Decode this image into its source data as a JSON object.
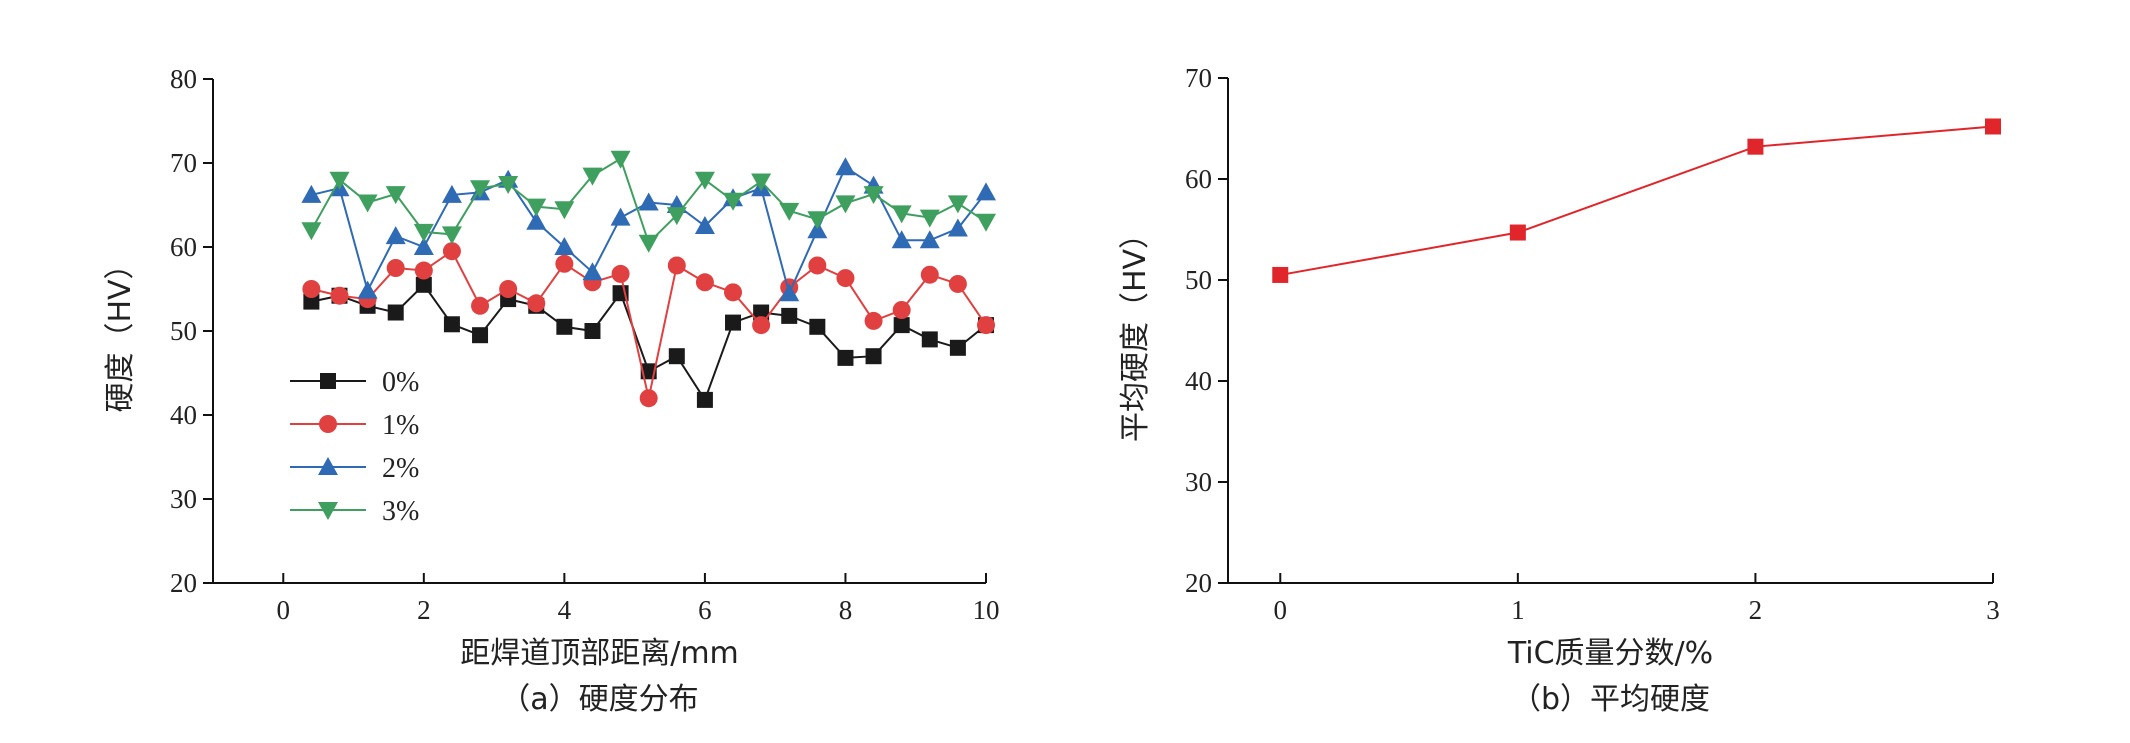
{
  "chart_data": [
    {
      "id": "a",
      "type": "line",
      "caption": "（a）硬度分布",
      "xlabel": "距焊道顶部距离/mm",
      "ylabel": "硬度（HV）",
      "xlim": [
        -1,
        10
      ],
      "ylim": [
        20,
        80
      ],
      "xticks": [
        0,
        2,
        4,
        6,
        8,
        10
      ],
      "yticks": [
        20,
        30,
        40,
        50,
        60,
        70,
        80
      ],
      "legend_position": "lower-left",
      "series": [
        {
          "name": "0%",
          "color": "#1a1a1a",
          "marker": "square",
          "x": [
            0.4,
            0.8,
            1.2,
            1.6,
            2.0,
            2.4,
            2.8,
            3.2,
            3.6,
            4.0,
            4.4,
            4.8,
            5.2,
            5.6,
            6.0,
            6.4,
            6.8,
            7.2,
            7.6,
            8.0,
            8.4,
            8.8,
            9.2,
            9.6,
            10.0
          ],
          "values": [
            53.5,
            54.2,
            53.0,
            52.2,
            55.5,
            50.8,
            49.5,
            53.8,
            53.0,
            50.5,
            50.0,
            54.5,
            45.2,
            47.0,
            41.8,
            51.0,
            52.2,
            51.8,
            50.5,
            46.8,
            47.0,
            50.7,
            49.0,
            48.0,
            50.7
          ]
        },
        {
          "name": "1%",
          "color": "#e0403f",
          "marker": "circle",
          "x": [
            0.4,
            0.8,
            1.2,
            1.6,
            2.0,
            2.4,
            2.8,
            3.2,
            3.6,
            4.0,
            4.4,
            4.8,
            5.2,
            5.6,
            6.0,
            6.4,
            6.8,
            7.2,
            7.6,
            8.0,
            8.4,
            8.8,
            9.2,
            9.6,
            10.0
          ],
          "values": [
            55.0,
            54.2,
            53.8,
            57.5,
            57.2,
            59.5,
            53.0,
            55.0,
            53.3,
            58.0,
            55.8,
            56.8,
            42.0,
            57.8,
            55.8,
            54.6,
            50.7,
            55.2,
            57.8,
            56.3,
            51.2,
            52.5,
            56.7,
            55.6,
            50.7
          ]
        },
        {
          "name": "2%",
          "color": "#2f6ab4",
          "marker": "triangle-up",
          "x": [
            0.4,
            0.8,
            1.2,
            1.6,
            2.0,
            2.4,
            2.8,
            3.2,
            3.6,
            4.0,
            4.4,
            4.8,
            5.2,
            5.6,
            6.0,
            6.4,
            6.8,
            7.2,
            7.6,
            8.0,
            8.4,
            8.8,
            9.2,
            9.6,
            10.0
          ],
          "values": [
            66.2,
            67.0,
            54.8,
            61.3,
            60.0,
            66.2,
            66.5,
            68.0,
            63.0,
            60.0,
            57.0,
            63.5,
            65.3,
            65.0,
            62.5,
            65.8,
            67.0,
            54.5,
            62.0,
            69.5,
            67.3,
            60.8,
            60.8,
            62.2,
            66.5
          ]
        },
        {
          "name": "3%",
          "color": "#3f9f5f",
          "marker": "triangle-down",
          "x": [
            0.4,
            0.8,
            1.2,
            1.6,
            2.0,
            2.4,
            2.8,
            3.2,
            3.6,
            4.0,
            4.4,
            4.8,
            5.2,
            5.6,
            6.0,
            6.4,
            6.8,
            7.2,
            7.6,
            8.0,
            8.4,
            8.8,
            9.2,
            9.6,
            10.0
          ],
          "values": [
            62.0,
            68.0,
            65.3,
            66.3,
            61.8,
            61.5,
            67.0,
            67.5,
            64.8,
            64.5,
            68.5,
            70.5,
            60.5,
            63.8,
            68.0,
            65.5,
            67.8,
            64.3,
            63.3,
            65.2,
            66.3,
            64.0,
            63.5,
            65.2,
            63.0
          ]
        }
      ]
    },
    {
      "id": "b",
      "type": "line",
      "caption": "（b）平均硬度",
      "xlabel": "TiC质量分数/%",
      "ylabel": "平均硬度（HV）",
      "xlim": [
        -0.22,
        3
      ],
      "ylim": [
        20,
        70
      ],
      "xticks": [
        0,
        1,
        2,
        3
      ],
      "yticks": [
        20,
        30,
        40,
        50,
        60,
        70
      ],
      "series": [
        {
          "name": "",
          "color": "#e0262a",
          "marker": "square",
          "x": [
            0,
            1,
            2,
            3
          ],
          "values": [
            50.5,
            54.7,
            63.2,
            65.2
          ]
        }
      ]
    }
  ]
}
